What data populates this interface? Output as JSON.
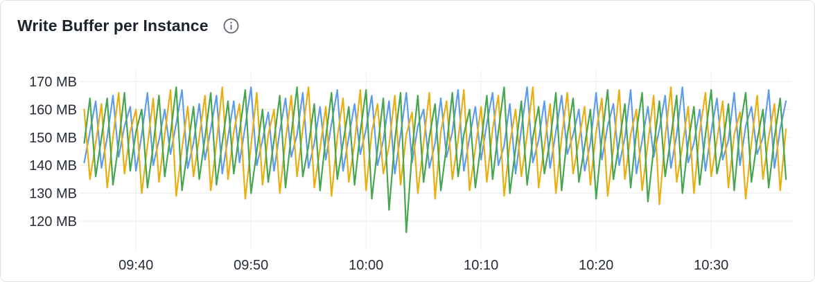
{
  "card": {
    "title": "Write Buffer per Instance",
    "info_icon": "info-circle-icon"
  },
  "colors": {
    "border": "#e2e4e8",
    "title_text": "#1d242e",
    "axis_text": "#272d36",
    "grid_horizontal": "#e8eaed",
    "grid_vertical": "#edeef1",
    "series_blue": "#5e9ceb",
    "series_yellow": "#eaaf0f",
    "series_green": "#46a54f"
  },
  "chart_data": {
    "type": "line",
    "title": "Write Buffer per Instance",
    "unit": "MB",
    "grid": true,
    "legend": "none",
    "ylim": [
      113,
      172
    ],
    "y_tick_values": [
      170,
      160,
      150,
      140,
      130,
      120
    ],
    "y_tick_labels": [
      "170 MB",
      "160 MB",
      "150 MB",
      "140 MB",
      "130 MB",
      "120 MB"
    ],
    "x_start_clock": "09:35:30",
    "x_end_clock": "10:36:30",
    "x_range_minutes": [
      0,
      61
    ],
    "sample_step_minutes": 0.5,
    "x_ticks": [
      {
        "label": "09:40",
        "t": 4.5
      },
      {
        "label": "09:50",
        "t": 14.5
      },
      {
        "label": "10:00",
        "t": 24.5
      },
      {
        "label": "10:10",
        "t": 34.5
      },
      {
        "label": "10:20",
        "t": 44.5
      },
      {
        "label": "10:30",
        "t": 54.5
      }
    ],
    "series": [
      {
        "name": "series-blue",
        "color": "#5e9ceb",
        "values": [
          141,
          152,
          163,
          139,
          150,
          165,
          143,
          154,
          161,
          138,
          151,
          166,
          140,
          149,
          160,
          144,
          155,
          167,
          139,
          148,
          162,
          142,
          153,
          165,
          137,
          150,
          163,
          141,
          154,
          168,
          140,
          149,
          159,
          138,
          152,
          164,
          143,
          151,
          166,
          139,
          148,
          161,
          142,
          155,
          167,
          138,
          150,
          162,
          144,
          153,
          165,
          140,
          149,
          163,
          137,
          151,
          166,
          141,
          154,
          160,
          139,
          148,
          164,
          143,
          152,
          167,
          138,
          150,
          161,
          142,
          155,
          166,
          140,
          147,
          162,
          137,
          153,
          168,
          141,
          149,
          163,
          139,
          152,
          165,
          144,
          151,
          160,
          138,
          148,
          166,
          142,
          154,
          162,
          140,
          150,
          167,
          137,
          149,
          161,
          143,
          153,
          165,
          139,
          151,
          168,
          141,
          148,
          160,
          138,
          152,
          164,
          142,
          149,
          166,
          140,
          154,
          161,
          144,
          150,
          167,
          139,
          153,
          163
        ]
      },
      {
        "name": "series-yellow",
        "color": "#eaaf0f",
        "values": [
          160,
          135,
          148,
          162,
          132,
          150,
          166,
          137,
          152,
          160,
          130,
          147,
          164,
          134,
          151,
          167,
          129,
          146,
          161,
          136,
          150,
          165,
          131,
          148,
          168,
          135,
          152,
          162,
          128,
          147,
          166,
          133,
          151,
          160,
          130,
          149,
          165,
          136,
          153,
          168,
          132,
          146,
          161,
          129,
          150,
          164,
          134,
          148,
          167,
          131,
          152,
          162,
          137,
          147,
          165,
          133,
          151,
          159,
          130,
          148,
          166,
          128,
          152,
          163,
          135,
          149,
          167,
          131,
          146,
          161,
          134,
          153,
          165,
          129,
          148,
          160,
          136,
          151,
          168,
          132,
          147,
          162,
          130,
          150,
          166,
          137,
          149,
          161,
          133,
          152,
          164,
          129,
          146,
          167,
          135,
          151,
          160,
          131,
          148,
          165,
          126,
          150,
          168,
          134,
          147,
          161,
          130,
          152,
          166,
          136,
          149,
          163,
          132,
          151,
          159,
          128,
          148,
          165,
          135,
          150,
          162,
          131,
          153
        ]
      },
      {
        "name": "series-green",
        "color": "#46a54f",
        "values": [
          148,
          164,
          136,
          150,
          164,
          133,
          148,
          166,
          138,
          152,
          160,
          132,
          147,
          165,
          136,
          151,
          168,
          131,
          146,
          161,
          135,
          150,
          166,
          133,
          148,
          163,
          137,
          152,
          167,
          130,
          145,
          160,
          134,
          149,
          165,
          132,
          151,
          168,
          136,
          147,
          162,
          131,
          150,
          166,
          135,
          148,
          161,
          133,
          152,
          167,
          128,
          146,
          164,
          124,
          149,
          166,
          116,
          145,
          165,
          134,
          150,
          162,
          131,
          147,
          166,
          136,
          151,
          160,
          132,
          148,
          165,
          135,
          152,
          168,
          130,
          146,
          163,
          133,
          150,
          161,
          137,
          149,
          166,
          131,
          151,
          164,
          134,
          147,
          160,
          128,
          150,
          167,
          135,
          148,
          162,
          132,
          152,
          166,
          127,
          146,
          163,
          136,
          150,
          165,
          130,
          148,
          161,
          133,
          151,
          167,
          137,
          147,
          162,
          131,
          153,
          166,
          134,
          149,
          160,
          132,
          150,
          164,
          135
        ]
      }
    ]
  }
}
